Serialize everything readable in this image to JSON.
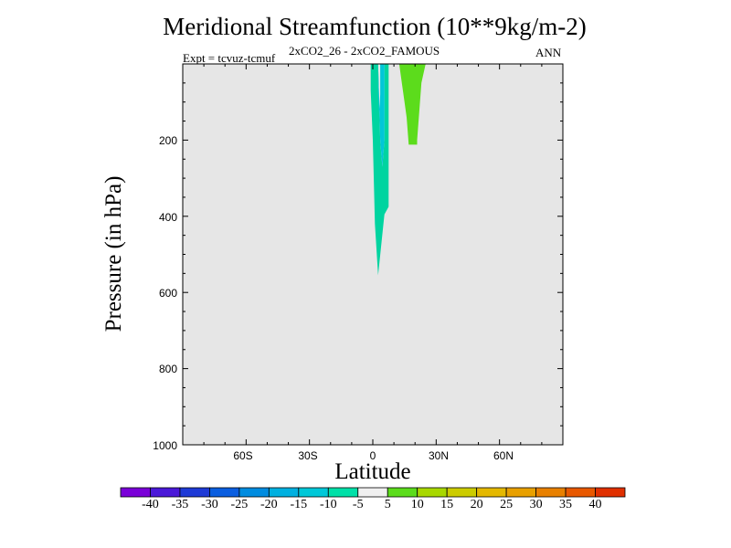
{
  "chart_data": {
    "type": "contour",
    "title": "Meridional Streamfunction (10**9kg/m-2)",
    "subtitle_left": "Expt = tcvuz-tcmuf",
    "subtitle_center": "2xCO2_26 - 2xCO2_FAMOUS",
    "subtitle_right": "ANN",
    "xlabel": "Latitude",
    "ylabel": "Pressure (in hPa)",
    "xlim": [
      -90,
      90
    ],
    "ylim": [
      1000,
      0
    ],
    "xticks": [
      {
        "value": -60,
        "label": "60S"
      },
      {
        "value": -30,
        "label": "30S"
      },
      {
        "value": 0,
        "label": "0"
      },
      {
        "value": 30,
        "label": "30N"
      },
      {
        "value": 60,
        "label": "60N"
      }
    ],
    "yticks": [
      {
        "value": 200,
        "label": "200"
      },
      {
        "value": 400,
        "label": "400"
      },
      {
        "value": 600,
        "label": "600"
      },
      {
        "value": 800,
        "label": "800"
      },
      {
        "value": 1000,
        "label": "1000"
      }
    ],
    "background": "#e6e6e6",
    "regions": [
      {
        "level": -5,
        "color": "#00d4a0",
        "polygon": [
          [
            -5.5,
            0
          ],
          [
            -1,
            0
          ],
          [
            -1,
            70
          ],
          [
            0,
            200
          ],
          [
            1,
            420
          ],
          [
            2.5,
            555
          ],
          [
            5.5,
            395
          ],
          [
            7.5,
            375
          ],
          [
            7.5,
            0
          ],
          [
            5.5,
            0
          ],
          [
            5.5,
            200
          ],
          [
            4.5,
            270
          ],
          [
            3.5,
            200
          ],
          [
            2.5,
            0
          ]
        ]
      },
      {
        "level": -10,
        "color": "#00c6d8",
        "polygon": [
          [
            -1,
            0
          ],
          [
            2.5,
            0
          ],
          [
            3.5,
            200
          ],
          [
            4.5,
            270
          ],
          [
            5.5,
            200
          ],
          [
            5.5,
            0
          ],
          [
            3.5,
            0
          ],
          [
            3.5,
            80
          ],
          [
            3,
            130
          ],
          [
            2.5,
            80
          ],
          [
            2.5,
            0
          ]
        ]
      },
      {
        "level": 5,
        "color": "#5cdc1c",
        "polygon": [
          [
            12.5,
            0
          ],
          [
            25,
            0
          ],
          [
            23,
            50
          ],
          [
            21,
            200
          ],
          [
            21,
            212
          ],
          [
            17,
            212
          ],
          [
            16,
            140
          ],
          [
            15,
            100
          ],
          [
            13.5,
            40
          ]
        ]
      }
    ],
    "colorbar": {
      "colors": [
        "#7a00d8",
        "#4a18d8",
        "#1e3ad6",
        "#0a5ee0",
        "#008ce0",
        "#00b0e0",
        "#00c8d8",
        "#00e0a8",
        "#f0f0f0",
        "#5cdc1c",
        "#a8d800",
        "#cccc00",
        "#e4b800",
        "#e8a000",
        "#e88000",
        "#e85800",
        "#e03000"
      ],
      "labels": [
        "-40",
        "-35",
        "-30",
        "-25",
        "-20",
        "-15",
        "-10",
        "-5",
        "5",
        "10",
        "15",
        "20",
        "25",
        "30",
        "35",
        "40"
      ]
    }
  }
}
